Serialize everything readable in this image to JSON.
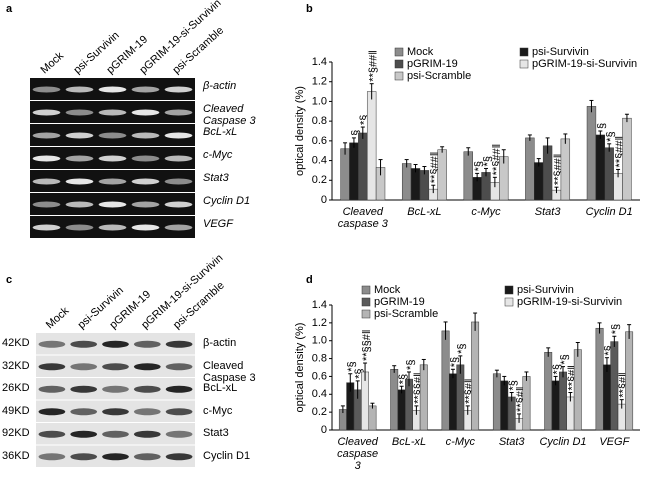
{
  "gels": [
    {
      "panel": "a",
      "lanes": [
        "Mock",
        "psi-Survivin",
        "pGRIM-19",
        "pGRIM-19-si-Survivin",
        "psi-Scramble"
      ],
      "rows": [
        "β-actin",
        "Cleaved Caspase 3",
        "BcL-xL",
        "c-Myc",
        "Stat3",
        "Cyclin D1",
        "VEGF"
      ]
    },
    {
      "panel": "c",
      "lanes": [
        "Mock",
        "psi-Survivin",
        "pGRIM-19",
        "pGRIM-19-si-Survivin",
        "psi-Scramble"
      ],
      "rows": [
        "β-actin",
        "Cleaved Caspase 3",
        "BcL-xL",
        "c-Myc",
        "Stat3",
        "Cyclin D1"
      ],
      "sizes": [
        "42KD",
        "32KD",
        "26KD",
        "49KD",
        "92KD",
        "36KD"
      ]
    }
  ],
  "chart_data": [
    {
      "type": "bar",
      "panel": "b",
      "ylabel": "optical density (%)",
      "categories": [
        "Cleaved caspase 3",
        "BcL-xL",
        "c-Myc",
        "Stat3",
        "Cyclin D1"
      ],
      "ylim": [
        0,
        1.4
      ],
      "yticks": [
        0,
        0.2,
        0.4,
        0.6,
        0.8,
        {
          "value": 1,
          "label": "1.0"
        },
        1.2,
        1.4
      ],
      "series": [
        {
          "name": "Mock",
          "color": "#8c8c8c",
          "values": [
            0.52,
            0.37,
            0.49,
            0.63,
            0.95
          ],
          "errors": [
            0.06,
            0.04,
            0.04,
            0.03,
            0.06
          ],
          "annotations": [
            null,
            null,
            null,
            null,
            null
          ]
        },
        {
          "name": "psi-Survivin",
          "color": "#1a1a1a",
          "values": [
            0.58,
            0.32,
            0.23,
            0.38,
            0.66
          ],
          "errors": [
            0.05,
            0.04,
            0.04,
            0.04,
            0.04
          ],
          "annotations": [
            "§",
            null,
            "*§",
            null,
            "§"
          ]
        },
        {
          "name": "pGRIM-19",
          "color": "#4d4d4d",
          "values": [
            0.68,
            0.3,
            0.28,
            0.55,
            0.53
          ],
          "errors": [
            0.06,
            0.04,
            0.04,
            0.08,
            0.04
          ],
          "annotations": [
            "*§",
            null,
            "*§",
            null,
            "*§"
          ]
        },
        {
          "name": "pGRIM-19-si-Survivin",
          "color": "#e6e6e6",
          "values": [
            1.1,
            0.11,
            0.18,
            0.1,
            0.27
          ],
          "errors": [
            0.08,
            0.04,
            0.05,
            0.03,
            0.04
          ],
          "annotations": [
            "**§##‖",
            "**§##‖",
            "**§##‖",
            "**§##‖",
            "**§##‖"
          ]
        },
        {
          "name": "psi-Scramble",
          "color": "#c8c8c8",
          "values": [
            0.33,
            0.51,
            0.44,
            0.62,
            0.83
          ],
          "errors": [
            0.08,
            0.03,
            0.07,
            0.05,
            0.04
          ],
          "annotations": [
            null,
            null,
            null,
            null,
            null
          ]
        }
      ]
    },
    {
      "type": "bar",
      "panel": "d",
      "ylabel": "optical density (%)",
      "categories": [
        "Cleaved caspase 3",
        "BcL-xL",
        "c-Myc",
        "Stat3",
        "Cyclin D1",
        "VEGF"
      ],
      "ylim": [
        0,
        1.4
      ],
      "yticks": [
        0,
        0.2,
        0.4,
        0.6,
        0.8,
        {
          "value": 1,
          "label": "1.0"
        },
        1.2,
        1.4
      ],
      "series": [
        {
          "name": "Mock",
          "color": "#8c8c8c",
          "values": [
            0.23,
            0.68,
            1.11,
            0.63,
            0.87,
            1.14
          ],
          "errors": [
            0.04,
            0.04,
            0.1,
            0.04,
            0.05,
            0.06
          ],
          "annotations": [
            null,
            null,
            null,
            null,
            null,
            null
          ]
        },
        {
          "name": "psi-Survivin",
          "color": "#1a1a1a",
          "values": [
            0.53,
            0.45,
            0.63,
            0.55,
            0.55,
            0.73
          ],
          "errors": [
            0.1,
            0.04,
            0.05,
            0.05,
            0.05,
            0.08
          ],
          "annotations": [
            "*§",
            "*§",
            "*§",
            null,
            "*§",
            "*§"
          ]
        },
        {
          "name": "pGRIM-19",
          "color": "#5a5a5a",
          "values": [
            0.45,
            0.57,
            0.73,
            0.37,
            0.65,
            0.99
          ],
          "errors": [
            0.1,
            0.08,
            0.1,
            0.05,
            0.06,
            0.06
          ],
          "annotations": [
            "*§",
            "*§",
            "*§",
            "*§",
            "*§",
            "*§"
          ]
        },
        {
          "name": "pGRIM-19-si-Survivin",
          "color": "#e6e6e6",
          "values": [
            0.65,
            0.22,
            0.22,
            0.13,
            0.37,
            0.29
          ],
          "errors": [
            0.1,
            0.05,
            0.05,
            0.05,
            0.05,
            0.05
          ],
          "annotations": [
            "**§§#‖",
            "**§§#‖",
            "**§#‖",
            "**§#‖",
            "**§#‖",
            "**§#‖"
          ]
        },
        {
          "name": "psi-Scramble",
          "color": "#b4b4b4",
          "values": [
            0.27,
            0.73,
            1.21,
            0.6,
            0.9,
            1.1
          ],
          "errors": [
            0.03,
            0.06,
            0.1,
            0.05,
            0.08,
            0.08
          ],
          "annotations": [
            null,
            null,
            null,
            null,
            null,
            null
          ]
        }
      ]
    }
  ]
}
